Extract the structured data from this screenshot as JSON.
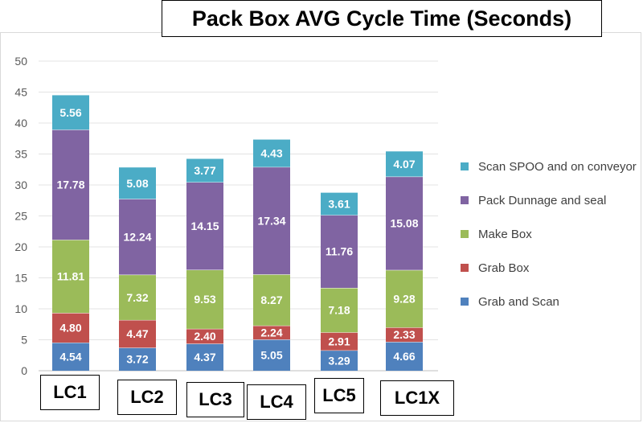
{
  "chart_data": {
    "type": "stacked-bar",
    "title": "Pack Box AVG Cycle Time (Seconds)",
    "categories": [
      "LC1",
      "LC2",
      "LC3",
      "LC4",
      "LC5",
      "LC1X"
    ],
    "ylim": [
      0,
      50
    ],
    "yticks": [
      0,
      5,
      10,
      15,
      20,
      25,
      30,
      35,
      40,
      45,
      50
    ],
    "grid": true,
    "legend_position": "right",
    "series": [
      {
        "name": "Grab and Scan",
        "color": "#4f81bd",
        "values": [
          4.54,
          3.72,
          4.37,
          5.05,
          3.29,
          4.66
        ],
        "labels": [
          "4.54",
          "3.72",
          "4.37",
          "5.05",
          "3.29",
          "4.66"
        ]
      },
      {
        "name": "Grab Box",
        "color": "#c0504d",
        "values": [
          4.8,
          4.47,
          2.4,
          2.24,
          2.91,
          2.33
        ],
        "labels": [
          "4.80",
          "4.47",
          "2.40",
          "2.24",
          "2.91",
          "2.33"
        ]
      },
      {
        "name": "Make Box",
        "color": "#9bbb59",
        "values": [
          11.81,
          7.32,
          9.53,
          8.27,
          7.18,
          9.28
        ],
        "labels": [
          "11.81",
          "7.32",
          "9.53",
          "8.27",
          "7.18",
          "9.28"
        ]
      },
      {
        "name": "Pack Dunnage and seal",
        "color": "#8064a2",
        "values": [
          17.78,
          12.24,
          14.15,
          17.34,
          11.76,
          15.08
        ],
        "labels": [
          "17.78",
          "12.24",
          "14.15",
          "17.34",
          "11.76",
          "15.08"
        ]
      },
      {
        "name": "Scan SPOO and on conveyor",
        "color": "#4bacc6",
        "values": [
          5.56,
          5.08,
          3.77,
          4.43,
          3.61,
          4.07
        ],
        "labels": [
          "5.56",
          "5.08",
          "3.77",
          "4.43",
          "3.61",
          "4.07"
        ]
      }
    ]
  }
}
